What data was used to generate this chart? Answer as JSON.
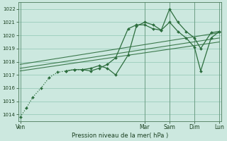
{
  "background_color": "#cce8df",
  "grid_color": "#99ccbb",
  "line_color": "#2d6e3e",
  "title": "Pression niveau de la mer( hPa )",
  "ylim": [
    1013.5,
    1022.5
  ],
  "yticks": [
    1014,
    1015,
    1016,
    1017,
    1018,
    1019,
    1020,
    1021,
    1022
  ],
  "day_labels": [
    "Ven",
    "Mar",
    "Sam",
    "Dim",
    "Lun"
  ],
  "day_positions": [
    0,
    60,
    72,
    84,
    96
  ],
  "xlim": [
    -1,
    97
  ],
  "series1_x": [
    0,
    3,
    6,
    10,
    14,
    18,
    22,
    26,
    30,
    34,
    38,
    42,
    46,
    52,
    56,
    60,
    64,
    68,
    72,
    76,
    80,
    84,
    87,
    92,
    96
  ],
  "series1_y": [
    1013.8,
    1014.5,
    1015.3,
    1016.0,
    1016.8,
    1017.2,
    1017.3,
    1017.4,
    1017.4,
    1017.5,
    1017.7,
    1017.5,
    1017.0,
    1018.5,
    1020.7,
    1021.0,
    1020.8,
    1020.4,
    1022.0,
    1021.0,
    1020.3,
    1019.8,
    1019.0,
    1020.2,
    1020.3
  ],
  "series1_dotted_end": 8,
  "series2_x": [
    22,
    26,
    30,
    34,
    38,
    42,
    46,
    52,
    56,
    60,
    64,
    68,
    72,
    76,
    80,
    84,
    87,
    92,
    96
  ],
  "series2_y": [
    1017.3,
    1017.4,
    1017.4,
    1017.3,
    1017.5,
    1017.8,
    1018.3,
    1020.5,
    1020.8,
    1020.8,
    1020.5,
    1020.4,
    1021.0,
    1020.3,
    1019.8,
    1019.1,
    1017.3,
    1019.8,
    1020.3
  ],
  "trend1_x": [
    0,
    96
  ],
  "trend1_y": [
    1017.3,
    1019.5
  ],
  "trend2_x": [
    0,
    96
  ],
  "trend2_y": [
    1017.5,
    1019.8
  ],
  "trend3_x": [
    0,
    96
  ],
  "trend3_y": [
    1017.8,
    1020.2
  ]
}
